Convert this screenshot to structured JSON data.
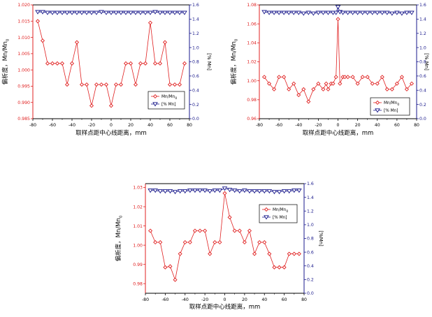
{
  "chart_data": [
    {
      "type": "line",
      "xlabel": "取样点距中心线距离，mm",
      "ylabel_left": "偏析度，Mn/Mn",
      "ylabel_left_subscript": "0",
      "ylabel_right": "[% Mn]",
      "xlim": [
        -80,
        80
      ],
      "ylim_left": [
        0.985,
        1.02
      ],
      "ylim_right": [
        0.0,
        1.6
      ],
      "xticks": [
        -80,
        -60,
        -40,
        -20,
        0,
        20,
        40,
        60,
        80
      ],
      "xtick_labels": [
        "-80",
        "-60",
        "-40",
        "-20",
        "0",
        "20",
        "40",
        "60",
        "80"
      ],
      "yticks_left": [
        0.985,
        0.99,
        0.995,
        1.0,
        1.005,
        1.01,
        1.015,
        1.02
      ],
      "ytick_labels_left": [
        "0.985",
        "0.990",
        "0.995",
        "1.000",
        "1.005",
        "1.010",
        "1.015",
        "1.020"
      ],
      "yticks_right": [
        0.0,
        0.2,
        0.4,
        0.6,
        0.8,
        1.0,
        1.2,
        1.4,
        1.6
      ],
      "ytick_labels_right": [
        "0.0",
        "0.2",
        "0.4",
        "0.6",
        "0.8",
        "1.0",
        "1.2",
        "1.4",
        "1.6"
      ],
      "legend_position": "lower-right",
      "series": [
        {
          "name": "Mn/Mn",
          "name_subscript": "0",
          "axis": "left",
          "color": "#e02020",
          "marker": "diamond",
          "x": [
            -75,
            -70,
            -65,
            -60,
            -55,
            -50,
            -45,
            -40,
            -35,
            -30,
            -25,
            -20,
            -15,
            -10,
            -5,
            0,
            5,
            10,
            15,
            20,
            25,
            30,
            35,
            40,
            45,
            50,
            55,
            60,
            65,
            70,
            75
          ],
          "y": [
            1.015,
            1.009,
            1.002,
            1.002,
            1.002,
            1.002,
            0.9955,
            1.002,
            1.0085,
            0.9955,
            0.9955,
            0.989,
            0.9955,
            0.9955,
            0.9955,
            0.989,
            0.9955,
            0.9955,
            1.002,
            1.002,
            0.9955,
            1.002,
            1.002,
            1.0145,
            1.002,
            1.002,
            1.0085,
            0.9955,
            0.9955,
            0.9955,
            1.002
          ]
        },
        {
          "name": "[% Mn]",
          "axis": "right",
          "color": "#1a1a8c",
          "marker": "triangle-down",
          "x": [
            -75,
            -70,
            -65,
            -60,
            -55,
            -50,
            -45,
            -40,
            -35,
            -30,
            -25,
            -20,
            -15,
            -10,
            -5,
            0,
            5,
            10,
            15,
            20,
            25,
            30,
            35,
            40,
            45,
            50,
            55,
            60,
            65,
            70,
            75
          ],
          "y": [
            1.5,
            1.5,
            1.49,
            1.49,
            1.49,
            1.49,
            1.49,
            1.49,
            1.49,
            1.49,
            1.49,
            1.49,
            1.49,
            1.5,
            1.49,
            1.49,
            1.49,
            1.49,
            1.49,
            1.49,
            1.49,
            1.49,
            1.49,
            1.49,
            1.5,
            1.49,
            1.49,
            1.49,
            1.49,
            1.49,
            1.49
          ]
        }
      ]
    },
    {
      "type": "line",
      "xlabel": "取样点距中心线距离，mm",
      "ylabel_left": "偏析度，Mn/Mn",
      "ylabel_left_subscript": "0",
      "ylabel_right": "[% Mn]",
      "xlim": [
        -80,
        80
      ],
      "ylim_left": [
        0.96,
        1.08
      ],
      "ylim_right": [
        0.0,
        1.6
      ],
      "xticks": [
        -80,
        -60,
        -40,
        -20,
        0,
        20,
        40,
        60,
        80
      ],
      "xtick_labels": [
        "-80",
        "-60",
        "-40",
        "-20",
        "0",
        "20",
        "40",
        "60",
        "80"
      ],
      "yticks_left": [
        0.96,
        0.98,
        1.0,
        1.02,
        1.04,
        1.06,
        1.08
      ],
      "ytick_labels_left": [
        "0.96",
        "0.98",
        "1.00",
        "1.02",
        "1.04",
        "1.06",
        "1.08"
      ],
      "yticks_right": [
        0.0,
        0.2,
        0.4,
        0.6,
        0.8,
        1.0,
        1.2,
        1.4,
        1.6
      ],
      "ytick_labels_right": [
        "0.0",
        "0.2",
        "0.4",
        "0.6",
        "0.8",
        "1.0",
        "1.2",
        "1.4",
        "1.6"
      ],
      "legend_position": "lower-right",
      "series": [
        {
          "name": "Mn/Mn",
          "name_subscript": "0",
          "axis": "left",
          "color": "#e02020",
          "marker": "diamond",
          "x": [
            -75,
            -70,
            -65,
            -60,
            -55,
            -50,
            -45,
            -40,
            -35,
            -30,
            -25,
            -20,
            -15,
            -12,
            -10,
            -7,
            -5,
            -2,
            0,
            2,
            5,
            7,
            10,
            15,
            20,
            25,
            30,
            35,
            40,
            45,
            50,
            55,
            60,
            65,
            70,
            75
          ],
          "y": [
            1.004,
            0.997,
            0.991,
            1.004,
            1.004,
            0.991,
            0.997,
            0.985,
            0.991,
            0.978,
            0.991,
            0.997,
            0.991,
            0.997,
            0.991,
            0.997,
            0.997,
            1.004,
            1.065,
            0.997,
            1.004,
            1.004,
            1.004,
            1.004,
            0.997,
            1.004,
            1.004,
            0.997,
            0.997,
            1.004,
            0.991,
            0.991,
            0.997,
            1.004,
            0.991,
            0.997
          ]
        },
        {
          "name": "[% Mn]",
          "axis": "right",
          "color": "#1a1a8c",
          "marker": "triangle-down",
          "x": [
            -75,
            -70,
            -65,
            -60,
            -55,
            -50,
            -45,
            -40,
            -35,
            -30,
            -25,
            -20,
            -15,
            -10,
            -5,
            -2,
            0,
            2,
            5,
            10,
            15,
            20,
            25,
            30,
            35,
            40,
            45,
            50,
            55,
            60,
            65,
            70,
            75
          ],
          "y": [
            1.5,
            1.49,
            1.49,
            1.49,
            1.49,
            1.49,
            1.49,
            1.49,
            1.48,
            1.49,
            1.48,
            1.49,
            1.49,
            1.49,
            1.49,
            1.49,
            1.57,
            1.5,
            1.49,
            1.49,
            1.49,
            1.49,
            1.49,
            1.49,
            1.49,
            1.49,
            1.49,
            1.49,
            1.48,
            1.49,
            1.48,
            1.49,
            1.49
          ]
        }
      ]
    },
    {
      "type": "line",
      "xlabel": "取样点距中心线距离，mm",
      "ylabel_left": "偏析度，Mn/Mn",
      "ylabel_left_subscript": "0",
      "ylabel_right": "[%Mn]",
      "xlim": [
        -80,
        80
      ],
      "ylim_left": [
        0.975,
        1.032
      ],
      "ylim_right": [
        0.0,
        1.6
      ],
      "xticks": [
        -80,
        -60,
        -40,
        -20,
        0,
        20,
        40,
        60,
        80
      ],
      "xtick_labels": [
        "-80",
        "-60",
        "-40",
        "-20",
        "0",
        "20",
        "40",
        "60",
        "80"
      ],
      "yticks_left": [
        0.98,
        0.99,
        1.0,
        1.01,
        1.02,
        1.03
      ],
      "ytick_labels_left": [
        "0.98",
        "0.99",
        "1.00",
        "1.01",
        "1.02",
        "1.03"
      ],
      "yticks_right": [
        0.0,
        0.2,
        0.4,
        0.6,
        0.8,
        1.0,
        1.2,
        1.4,
        1.6
      ],
      "ytick_labels_right": [
        "0.0",
        "0.2",
        "0.4",
        "0.6",
        "0.8",
        "1.0",
        "1.2",
        "1.4",
        "1.6"
      ],
      "legend_position": "upper-right",
      "series": [
        {
          "name": "Mn/Mn",
          "name_subscript": "0",
          "axis": "left",
          "color": "#e02020",
          "marker": "diamond",
          "x": [
            -75,
            -70,
            -65,
            -60,
            -55,
            -50,
            -45,
            -40,
            -35,
            -30,
            -25,
            -20,
            -15,
            -10,
            -5,
            0,
            5,
            10,
            15,
            20,
            25,
            30,
            35,
            40,
            45,
            50,
            55,
            60,
            65,
            70,
            75
          ],
          "y": [
            1.0075,
            1.0015,
            1.0015,
            0.9885,
            0.989,
            0.982,
            0.9955,
            1.0015,
            1.0015,
            1.0075,
            1.0075,
            1.0075,
            0.9955,
            1.0015,
            1.0015,
            1.027,
            1.0145,
            1.0075,
            1.0075,
            1.0015,
            1.0075,
            0.9955,
            1.0015,
            1.0015,
            0.9955,
            0.9885,
            0.9885,
            0.9885,
            0.9955,
            0.9955,
            0.9955
          ]
        },
        {
          "name": "[% Mn]",
          "axis": "right",
          "color": "#1a1a8c",
          "marker": "triangle-down",
          "x": [
            -75,
            -70,
            -65,
            -60,
            -55,
            -50,
            -45,
            -40,
            -35,
            -30,
            -25,
            -20,
            -15,
            -10,
            -5,
            0,
            5,
            10,
            15,
            20,
            25,
            30,
            35,
            40,
            45,
            50,
            55,
            60,
            65,
            70,
            75
          ],
          "y": [
            1.5,
            1.5,
            1.49,
            1.49,
            1.49,
            1.48,
            1.49,
            1.49,
            1.5,
            1.5,
            1.5,
            1.5,
            1.49,
            1.5,
            1.5,
            1.53,
            1.51,
            1.5,
            1.49,
            1.5,
            1.49,
            1.49,
            1.49,
            1.49,
            1.49,
            1.48,
            1.48,
            1.49,
            1.49,
            1.5,
            1.5
          ]
        }
      ]
    }
  ]
}
